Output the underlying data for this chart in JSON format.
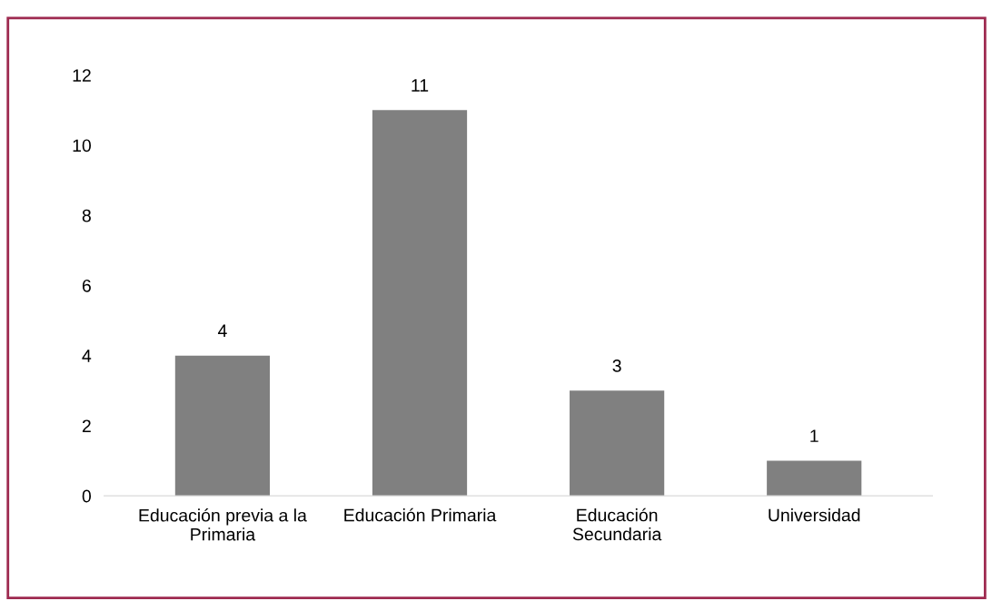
{
  "chart_data": {
    "type": "bar",
    "categories": [
      "Educación previa a la\nPrimaria",
      "Educación Primaria",
      "Educación\nSecundaria",
      "Universidad"
    ],
    "values": [
      4,
      11,
      3,
      1
    ],
    "color": "#808080",
    "ylim": [
      0,
      12
    ],
    "yticks": [
      0,
      2,
      4,
      6,
      8,
      10,
      12
    ],
    "data_labels": true,
    "grid": false
  }
}
